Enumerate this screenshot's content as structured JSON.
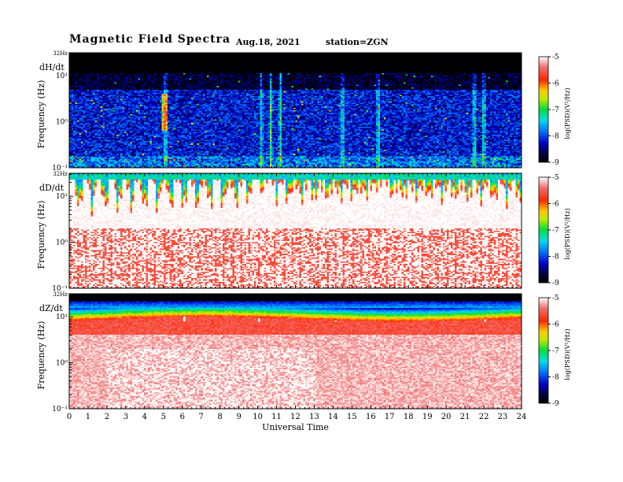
{
  "header": {
    "title": "Magnetic  Field  Spectra",
    "date": "Aug.18, 2021",
    "station": "station=ZGN"
  },
  "chart_data": [
    {
      "type": "heatmap",
      "panel_label": "dH/dt",
      "ylabel": "Frequency  (Hz)",
      "top_tick": "32Hz",
      "yticks": [
        "10¹",
        "10⁰",
        "10⁻¹"
      ],
      "colorbar_label": "log(PSD)(V²/Hz)",
      "colorbar_ticks": [
        "-5",
        "-6",
        "-7",
        "-8",
        "-9"
      ],
      "xlim": [
        0,
        24
      ],
      "zlim": [
        -9,
        -5
      ],
      "spectrum": {
        "log_f_range": [
          -1,
          1.5
        ],
        "background": -8.2,
        "high_freq_level": -9.3,
        "high_freq_cutoff_log_f": 1.05,
        "transient_hours": [
          5.1,
          10.2,
          10.7,
          11.2,
          14.5,
          16.4,
          21.5,
          22.0
        ]
      }
    },
    {
      "type": "heatmap",
      "panel_label": "dD/dt",
      "ylabel": "Frequency  (Hz)",
      "top_tick": "32Hz",
      "yticks": [
        "10¹",
        "10⁰",
        "10⁻¹"
      ],
      "colorbar_label": "log(PSD)(V²/Hz)",
      "colorbar_ticks": [
        "-5",
        "-6",
        "-7",
        "-8",
        "-9"
      ],
      "xlim": [
        0,
        24
      ],
      "zlim": [
        -9,
        -5
      ],
      "spectrum": {
        "log_f_range": [
          -1,
          1.5
        ],
        "background": -5.0,
        "edge_level": -7.5,
        "quiet_hours": [
          [
            9.6,
            11.0
          ],
          [
            16.3,
            17.0
          ]
        ]
      }
    },
    {
      "type": "heatmap",
      "panel_label": "dZ/dt",
      "ylabel": "Frequency  (Hz)",
      "top_tick": "32Hz",
      "yticks": [
        "10¹",
        "10⁰",
        "10⁻¹"
      ],
      "colorbar_label": "log(PSD)(V²/Hz)",
      "colorbar_ticks": [
        "-5",
        "-6",
        "-7",
        "-8",
        "-9"
      ],
      "xlim": [
        0,
        24
      ],
      "zlim": [
        -9,
        -5
      ],
      "spectrum": {
        "log_f_range": [
          -1,
          1.5
        ],
        "background": -5.2,
        "high_freq_level": -9.5,
        "transient_hours": [
          6.1,
          10.1,
          14.1,
          18.1,
          22.1
        ]
      }
    }
  ],
  "xaxis": {
    "label": "Universal Time",
    "ticks": [
      "0",
      "1",
      "2",
      "3",
      "4",
      "5",
      "6",
      "7",
      "8",
      "9",
      "10",
      "11",
      "12",
      "13",
      "14",
      "15",
      "16",
      "17",
      "18",
      "19",
      "20",
      "21",
      "22",
      "23",
      "24"
    ]
  }
}
